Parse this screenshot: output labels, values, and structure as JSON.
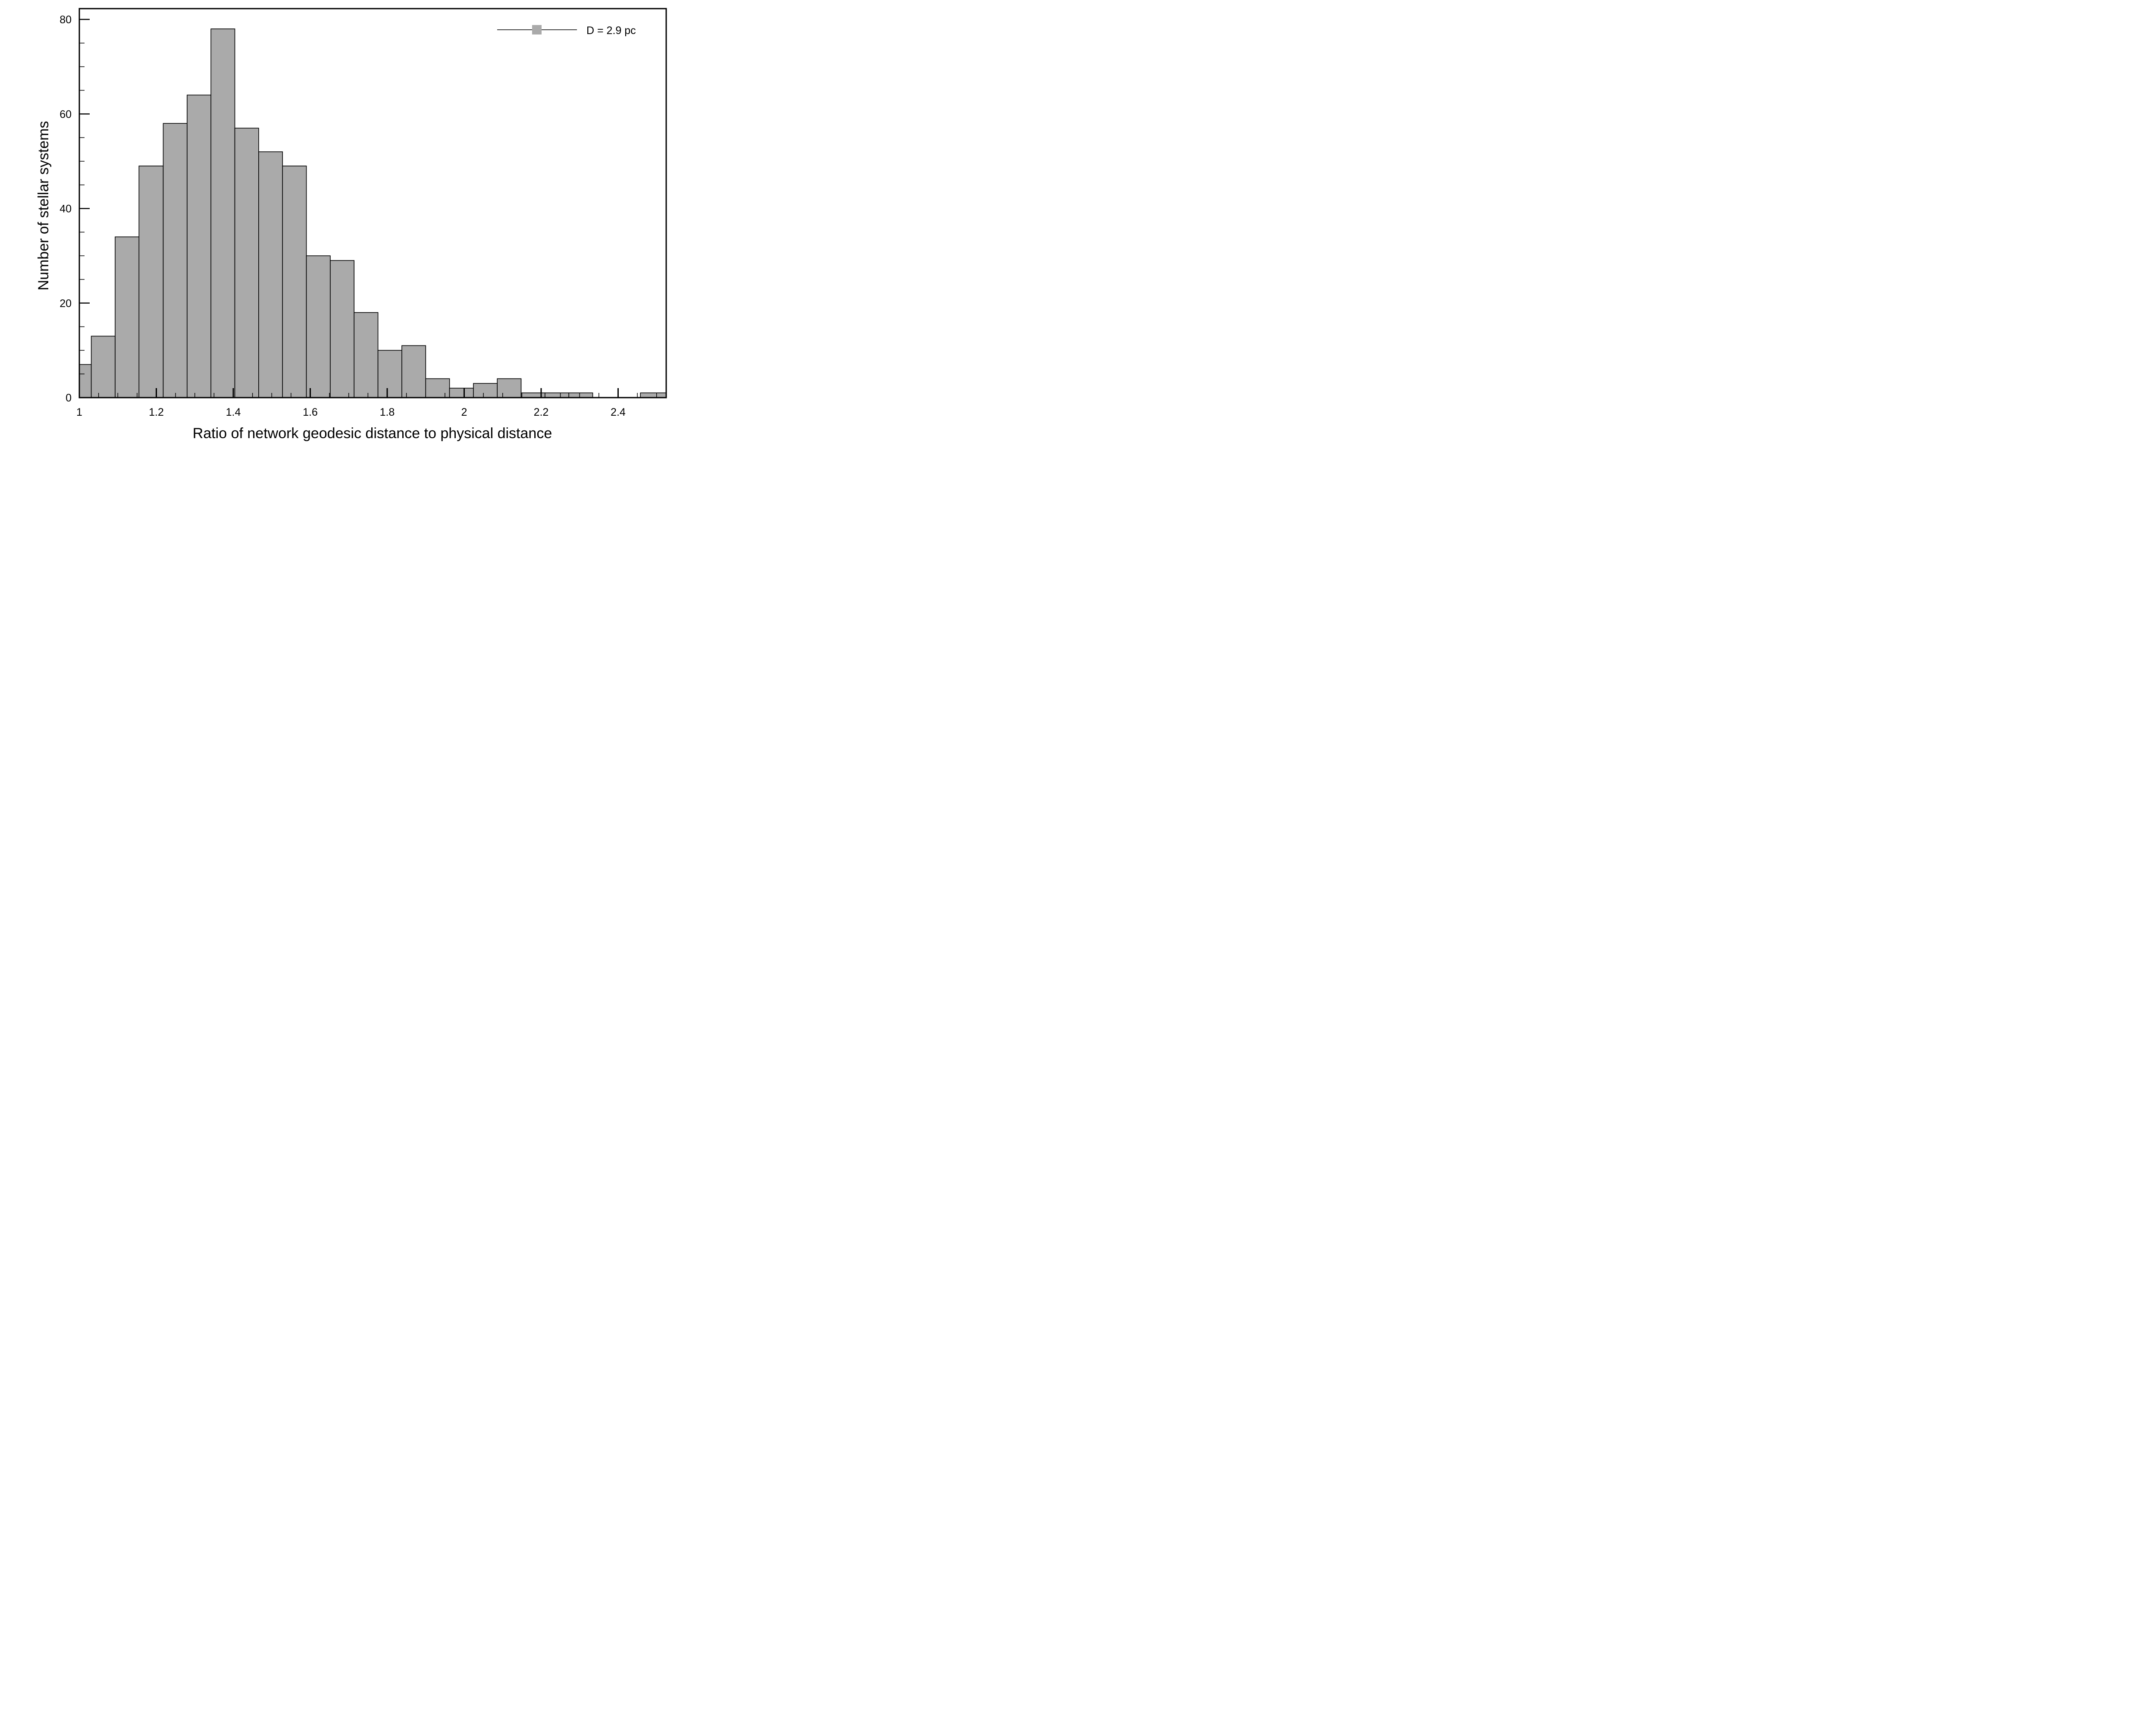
{
  "chart_data": {
    "type": "bar",
    "subtype": "histogram",
    "xlabel": "Ratio of network geodesic distance to physical distance",
    "ylabel": "Number of stellar systems",
    "xlim": [
      1.0,
      2.525
    ],
    "ylim": [
      0,
      80
    ],
    "x_ticks": [
      1,
      1.2,
      1.4,
      1.6,
      1.8,
      2,
      2.2,
      2.4
    ],
    "x_tick_labels": [
      "1",
      "1.2",
      "1.4",
      "1.6",
      "1.8",
      "2",
      "2.2",
      "2.4"
    ],
    "y_ticks": [
      0,
      20,
      40,
      60,
      80
    ],
    "y_tick_labels": [
      "0",
      "20",
      "40",
      "60",
      "80"
    ],
    "bin_edges": [
      1.0,
      1.031,
      1.093,
      1.155,
      1.218,
      1.28,
      1.342,
      1.404,
      1.466,
      1.528,
      1.59,
      1.652,
      1.714,
      1.776,
      1.838,
      1.9,
      1.962,
      2.024,
      2.086,
      2.148,
      2.21,
      2.272,
      2.334,
      2.396,
      2.458,
      2.525
    ],
    "values": [
      7,
      13,
      34,
      49,
      58,
      64,
      78,
      57,
      52,
      49,
      30,
      29,
      18,
      10,
      11,
      4,
      2,
      3,
      4,
      1,
      1,
      1,
      0,
      0,
      1
    ],
    "series": [
      {
        "name": "D = 2.9 pc",
        "color": "#aaaaaa"
      }
    ],
    "legend_position": "top-right",
    "grid": false
  }
}
